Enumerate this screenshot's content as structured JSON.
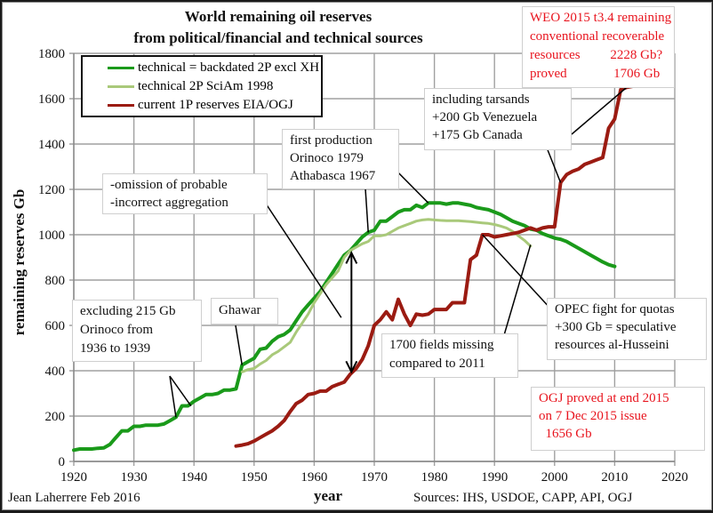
{
  "chart_data": {
    "type": "line",
    "title": "World remaining oil reserves",
    "subtitle": "from political/financial and technical sources",
    "xlabel": "year",
    "ylabel": "remaining reserves Gb",
    "xlim": [
      1920,
      2020
    ],
    "ylim": [
      0,
      1800
    ],
    "x_ticks": [
      "1920",
      "1930",
      "1940",
      "1950",
      "1960",
      "1970",
      "1980",
      "1990",
      "2000",
      "2010",
      "2020"
    ],
    "y_ticks": [
      "0",
      "200",
      "400",
      "600",
      "800",
      "1000",
      "1200",
      "1400",
      "1600",
      "1800"
    ],
    "grid": true,
    "legend_position": "top-left",
    "series": [
      {
        "name": "technical = backdated 2P excl XH",
        "color": "#1a9a1a",
        "x": [
          1920,
          1921,
          1922,
          1923,
          1924,
          1925,
          1926,
          1927,
          1928,
          1929,
          1930,
          1931,
          1932,
          1933,
          1934,
          1935,
          1936,
          1937,
          1938,
          1939,
          1940,
          1941,
          1942,
          1943,
          1944,
          1945,
          1946,
          1947,
          1948,
          1949,
          1950,
          1951,
          1952,
          1953,
          1954,
          1955,
          1956,
          1957,
          1958,
          1959,
          1960,
          1961,
          1962,
          1963,
          1964,
          1965,
          1966,
          1967,
          1968,
          1969,
          1970,
          1971,
          1972,
          1973,
          1974,
          1975,
          1976,
          1977,
          1978,
          1979,
          1980,
          1981,
          1982,
          1983,
          1984,
          1985,
          1986,
          1987,
          1988,
          1989,
          1990,
          1991,
          1992,
          1993,
          1994,
          1995,
          1996,
          1997,
          1998,
          1999,
          2000,
          2001,
          2002,
          2003,
          2004,
          2005,
          2006,
          2007,
          2008,
          2009,
          2010
        ],
        "values": [
          50,
          55,
          55,
          55,
          58,
          60,
          75,
          105,
          135,
          135,
          155,
          155,
          160,
          160,
          160,
          165,
          180,
          195,
          245,
          245,
          265,
          280,
          295,
          295,
          300,
          315,
          315,
          320,
          425,
          440,
          455,
          495,
          500,
          530,
          550,
          560,
          580,
          620,
          660,
          690,
          720,
          750,
          790,
          830,
          870,
          910,
          930,
          960,
          990,
          1010,
          1020,
          1060,
          1060,
          1080,
          1100,
          1110,
          1110,
          1130,
          1120,
          1140,
          1140,
          1140,
          1135,
          1140,
          1140,
          1135,
          1130,
          1120,
          1115,
          1110,
          1100,
          1090,
          1075,
          1060,
          1050,
          1040,
          1025,
          1020,
          1005,
          995,
          985,
          980,
          970,
          955,
          940,
          925,
          910,
          895,
          880,
          868,
          860
        ]
      },
      {
        "name": "technical 2P SciAm 1998",
        "color": "#a9c97a",
        "x": [
          1948,
          1949,
          1950,
          1951,
          1952,
          1953,
          1954,
          1955,
          1956,
          1957,
          1958,
          1959,
          1960,
          1961,
          1962,
          1963,
          1964,
          1965,
          1966,
          1967,
          1968,
          1969,
          1970,
          1971,
          1972,
          1973,
          1974,
          1975,
          1976,
          1977,
          1978,
          1979,
          1980,
          1981,
          1982,
          1983,
          1984,
          1985,
          1986,
          1987,
          1988,
          1989,
          1990,
          1991,
          1992,
          1993,
          1994,
          1995,
          1996
        ],
        "values": [
          395,
          405,
          410,
          430,
          445,
          470,
          485,
          505,
          525,
          570,
          610,
          650,
          700,
          740,
          780,
          810,
          840,
          900,
          930,
          945,
          960,
          970,
          995,
          995,
          1000,
          1015,
          1030,
          1040,
          1050,
          1060,
          1065,
          1068,
          1065,
          1063,
          1062,
          1062,
          1062,
          1060,
          1058,
          1055,
          1052,
          1050,
          1045,
          1038,
          1030,
          1015,
          995,
          975,
          950
        ]
      },
      {
        "name": "current 1P reserves EIA/OGJ",
        "color": "#9b1b12",
        "x": [
          1947,
          1948,
          1949,
          1950,
          1951,
          1952,
          1953,
          1954,
          1955,
          1956,
          1957,
          1958,
          1959,
          1960,
          1961,
          1962,
          1963,
          1964,
          1965,
          1966,
          1967,
          1968,
          1969,
          1970,
          1971,
          1972,
          1973,
          1974,
          1975,
          1976,
          1977,
          1978,
          1979,
          1980,
          1981,
          1982,
          1983,
          1984,
          1985,
          1986,
          1987,
          1988,
          1989,
          1990,
          1991,
          1992,
          1993,
          1994,
          1995,
          1996,
          1997,
          1998,
          1999,
          2000,
          2001,
          2002,
          2003,
          2004,
          2005,
          2006,
          2007,
          2008,
          2009,
          2010,
          2011,
          2012,
          2013,
          2014,
          2015
        ],
        "values": [
          68,
          72,
          78,
          90,
          105,
          120,
          135,
          155,
          180,
          220,
          255,
          270,
          295,
          300,
          310,
          310,
          330,
          340,
          350,
          385,
          410,
          450,
          510,
          600,
          625,
          660,
          625,
          715,
          650,
          600,
          650,
          645,
          650,
          670,
          670,
          670,
          700,
          700,
          700,
          890,
          910,
          1000,
          1000,
          990,
          995,
          1000,
          1005,
          1010,
          1020,
          1030,
          1020,
          1030,
          1035,
          1035,
          1230,
          1265,
          1280,
          1290,
          1310,
          1320,
          1330,
          1340,
          1470,
          1510,
          1640,
          1650,
          1655,
          1656,
          1656
        ]
      }
    ],
    "annotations": [
      {
        "id": "weo",
        "lines": [
          "WEO 2015 t3.4 remaining",
          "conventional recoverable",
          "resources         2228 Gb?",
          "proved              1706 Gb"
        ],
        "color": "#e8141e"
      },
      {
        "id": "tarsands",
        "lines": [
          "including tarsands",
          "+200 Gb Venezuela",
          "+175 Gb Canada"
        ]
      },
      {
        "id": "firstprod",
        "lines": [
          "first production",
          "Orinoco 1979",
          "Athabasca 1967"
        ]
      },
      {
        "id": "omission",
        "lines": [
          "-omission of probable",
          "-incorrect aggregation"
        ]
      },
      {
        "id": "orinoco",
        "lines": [
          "excluding 215 Gb",
          "Orinoco from",
          "1936 to 1939"
        ]
      },
      {
        "id": "ghawar",
        "lines": [
          "Ghawar"
        ]
      },
      {
        "id": "fields",
        "lines": [
          "1700 fields missing",
          "compared to 2011"
        ]
      },
      {
        "id": "opec",
        "lines": [
          "OPEC fight for quotas",
          "+300 Gb = speculative",
          "resources al-Husseini"
        ]
      },
      {
        "id": "ogj",
        "lines": [
          "OGJ proved at end 2015",
          "on 7 Dec 2015 issue",
          "  1656 Gb"
        ],
        "color": "#e8141e"
      }
    ],
    "footer_left": "Jean Laherrere Feb 2016",
    "footer_right": "Sources: IHS, USDOE, CAPP, API, OGJ"
  }
}
